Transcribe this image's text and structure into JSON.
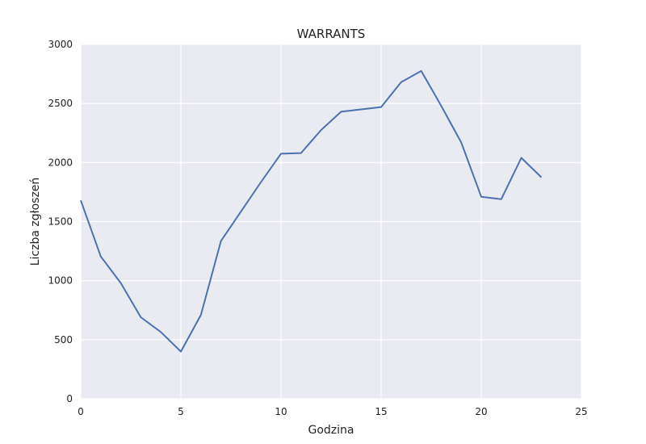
{
  "chart_data": {
    "type": "line",
    "title": "WARRANTS",
    "xlabel": "Godzina",
    "ylabel": "Liczba zgłoszeń",
    "xlim": [
      0,
      25
    ],
    "ylim": [
      0,
      3000
    ],
    "xticks": [
      "0",
      "5",
      "10",
      "15",
      "20",
      "25"
    ],
    "yticks": [
      "0",
      "500",
      "1000",
      "1500",
      "2000",
      "2500",
      "3000"
    ],
    "grid": true,
    "legend": "none",
    "colors": {
      "background": "#eaeaf2",
      "grid": "#ffffff",
      "line": "#4c72b0"
    },
    "series": [
      {
        "x": [
          0,
          1,
          2,
          3,
          4,
          5,
          6,
          7,
          8,
          9,
          10,
          11,
          12,
          13,
          14,
          15,
          16,
          17,
          18,
          19,
          20,
          21,
          22,
          23
        ],
        "values": [
          1680,
          1205,
          980,
          690,
          565,
          400,
          710,
          1335,
          1585,
          1835,
          2075,
          2080,
          2275,
          2430,
          2450,
          2470,
          2680,
          2775,
          2480,
          2170,
          1710,
          1690,
          2040,
          1875
        ]
      }
    ]
  }
}
